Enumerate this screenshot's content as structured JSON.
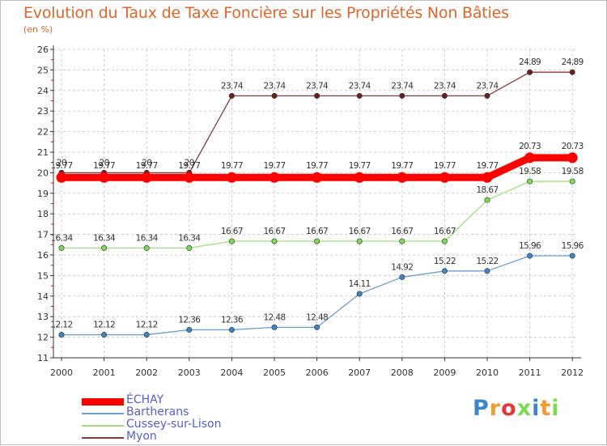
{
  "page": {
    "title": "Evolution du Taux de Taxe Foncière sur les Propriétés Non Bâties",
    "unit_label": "(en %)",
    "logo_text": "Proxiti",
    "colors": {
      "title": "#e0662b",
      "grid": "#cccccc",
      "axis": "#333333",
      "tick_red": "#ff0000",
      "legend_text": "#5561c9"
    }
  },
  "chart_data": {
    "type": "line",
    "title": "Evolution du Taux de Taxe Foncière sur les Propriétés Non Bâties",
    "ylabel": "(en %)",
    "xlabel": "",
    "x": [
      "2000",
      "2001",
      "2002",
      "2003",
      "2004",
      "2005",
      "2006",
      "2007",
      "2008",
      "2009",
      "2010",
      "2011",
      "2012"
    ],
    "ylim": [
      11,
      26
    ],
    "yticks": [
      "11",
      "12",
      "13",
      "14",
      "15",
      "16",
      "17",
      "18",
      "19",
      "20",
      "21",
      "22",
      "23",
      "24",
      "25",
      "26"
    ],
    "grid": true,
    "legend_position": "bottom-left",
    "series": [
      {
        "name": "Myon",
        "color": "#8b3a3a",
        "marker": "#6b1f1f",
        "width": 1.3,
        "values": [
          20,
          20,
          20,
          20,
          23.74,
          23.74,
          23.74,
          23.74,
          23.74,
          23.74,
          23.74,
          24.89,
          24.89
        ],
        "labels": [
          "20",
          "20",
          "20",
          "20",
          "23.74",
          "23.74",
          "23.74",
          "23.74",
          "23.74",
          "23.74",
          "23.74",
          "24.89",
          "24.89"
        ]
      },
      {
        "name": "ÉCHAY",
        "color": "#ff0000",
        "marker": "#ff0000",
        "width": 9,
        "values": [
          19.77,
          19.77,
          19.77,
          19.77,
          19.77,
          19.77,
          19.77,
          19.77,
          19.77,
          19.77,
          19.77,
          20.73,
          20.73
        ],
        "labels": [
          "19.77",
          "19.77",
          "19.77",
          "19.77",
          "19.77",
          "19.77",
          "19.77",
          "19.77",
          "19.77",
          "19.77",
          "19.77",
          "20.73",
          "20.73"
        ]
      },
      {
        "name": "Cussey-sur-Lison",
        "color": "#9fe07a",
        "marker": "#7ed957",
        "width": 1.3,
        "values": [
          16.34,
          16.34,
          16.34,
          16.34,
          16.67,
          16.67,
          16.67,
          16.67,
          16.67,
          16.67,
          18.67,
          19.58,
          19.58
        ],
        "labels": [
          "16.34",
          "16.34",
          "16.34",
          "16.34",
          "16.67",
          "16.67",
          "16.67",
          "16.67",
          "16.67",
          "16.67",
          "18.67",
          "19.58",
          "19.58"
        ]
      },
      {
        "name": "Bartherans",
        "color": "#6a9fd4",
        "marker": "#3d85c6",
        "width": 1.3,
        "values": [
          12.12,
          12.12,
          12.12,
          12.36,
          12.36,
          12.48,
          12.48,
          14.11,
          14.92,
          15.22,
          15.22,
          15.96,
          15.96
        ],
        "labels": [
          "12.12",
          "12.12",
          "12.12",
          "12.36",
          "12.36",
          "12.48",
          "12.48",
          "14.11",
          "14.92",
          "15.22",
          "15.22",
          "15.96",
          "15.96"
        ]
      }
    ],
    "legend": [
      "ÉCHAY",
      "Bartherans",
      "Cussey-sur-Lison",
      "Myon"
    ]
  }
}
